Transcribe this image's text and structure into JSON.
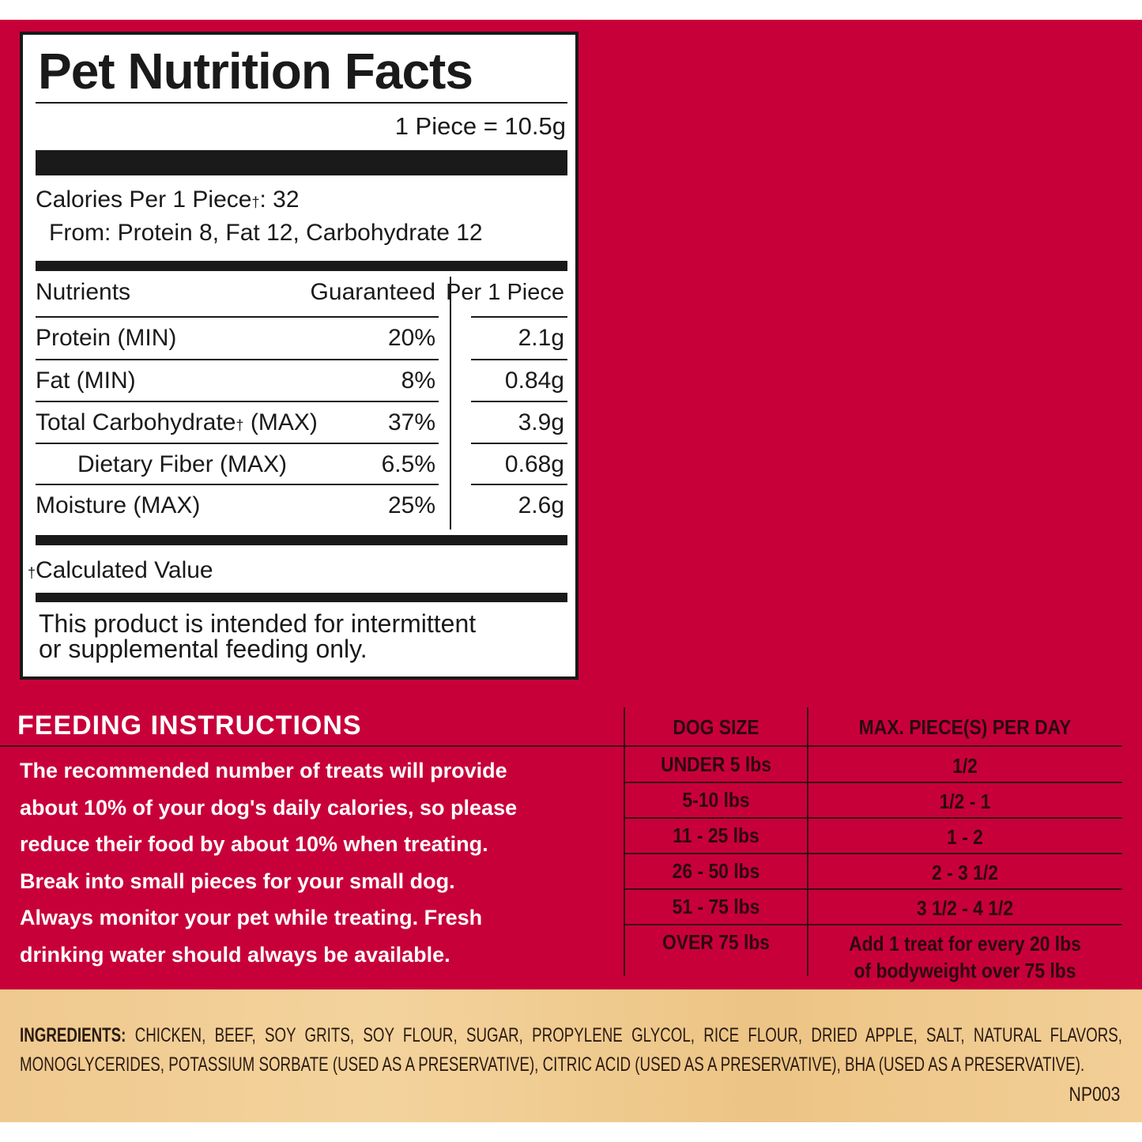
{
  "nutrition_facts": {
    "title": "Pet Nutrition Facts",
    "serving": "1 Piece = 10.5g",
    "calories": {
      "label": "Calories Per 1 Piece",
      "mark": "†",
      "value": ": 32"
    },
    "calories_from": "From: Protein 8, Fat 12, Carbohydrate 12",
    "header": [
      "Nutrients",
      "Guaranteed",
      "Per 1 Piece"
    ],
    "rows": [
      {
        "name": "Protein (MIN)",
        "guaranteed": "20%",
        "per_piece": "2.1g"
      },
      {
        "name": "Fat (MIN)",
        "guaranteed": "8%",
        "per_piece": "0.84g"
      },
      {
        "name": "Total Carbohydrate",
        "mark": "†",
        "suffix": " (MAX)",
        "guaranteed": "37%",
        "per_piece": "3.9g"
      },
      {
        "name": "Dietary Fiber (MAX)",
        "indent": true,
        "guaranteed": "6.5%",
        "per_piece": "0.68g"
      },
      {
        "name": "Moisture (MAX)",
        "guaranteed": "25%",
        "per_piece": "2.6g"
      }
    ],
    "footnote": {
      "mark": "†",
      "text": "Calculated Value"
    },
    "statement": [
      "This product is intended for intermittent",
      "or supplemental feeding only."
    ]
  },
  "feeding_instructions": {
    "title": "FEEDING INSTRUCTIONS",
    "lines": [
      "The recommended number of treats will provide",
      "about 10% of your dog's daily calories, so please",
      "reduce their food by about 10% when treating.",
      "Break into small pieces for your small dog.",
      "Always monitor your pet while treating. Fresh",
      "drinking water should always be available."
    ]
  },
  "feeding_table": {
    "header": [
      "DOG SIZE",
      "MAX. PIECE(S) PER DAY"
    ],
    "rows": [
      [
        "UNDER 5 lbs",
        "1/2"
      ],
      [
        "5-10 lbs",
        "1/2 - 1"
      ],
      [
        "11 - 25 lbs",
        "1 - 2"
      ],
      [
        "26 - 50 lbs",
        "2 - 3 1/2"
      ],
      [
        "51 - 75 lbs",
        "3 1/2 - 4 1/2"
      ],
      [
        "OVER 75 lbs",
        "Add 1 treat for every 20 lbs of bodyweight over 75 lbs"
      ]
    ]
  },
  "ingredients": {
    "label": "INGREDIENTS:",
    "text": "CHICKEN, BEEF, SOY GRITS, SOY FLOUR, SUGAR, PROPYLENE GLYCOL, RICE FLOUR, DRIED APPLE, SALT, NATURAL FLAVORS, MONOGLYCERIDES, POTASSIUM SORBATE (USED AS A PRESERVATIVE), CITRIC ACID (USED AS A PRESERVATIVE), BHA (USED AS A PRESERVATIVE).",
    "code": "NP003"
  }
}
